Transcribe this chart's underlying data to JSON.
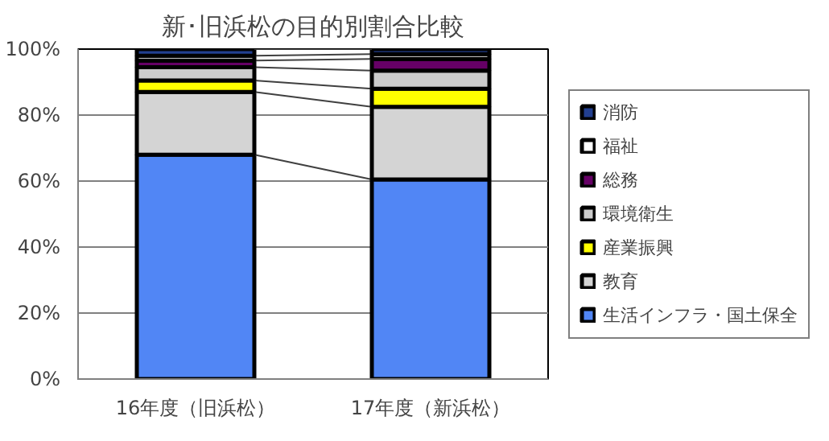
{
  "chart_data": {
    "type": "bar",
    "stacked": true,
    "title": "新･旧浜松の目的別割合比較",
    "categories": [
      "16年度（旧浜松）",
      "17年度（新浜松）"
    ],
    "series": [
      {
        "name": "生活インフラ・国土保全",
        "color": "#5186f5",
        "values": [
          68,
          60.5
        ]
      },
      {
        "name": "教育",
        "color": "#d4d4d4",
        "values": [
          19,
          22
        ]
      },
      {
        "name": "産業振興",
        "color": "#ffff00",
        "values": [
          3.5,
          5.5
        ]
      },
      {
        "name": "環境衛生",
        "color": "#cccccc",
        "values": [
          4,
          5.5
        ]
      },
      {
        "name": "総務",
        "color": "#660066",
        "values": [
          2,
          3.5
        ]
      },
      {
        "name": "福祉",
        "color": "#ffffff",
        "values": [
          1.5,
          1.5
        ]
      },
      {
        "name": "消防",
        "color": "#223f8f",
        "values": [
          2,
          1.5
        ]
      }
    ],
    "ylim": [
      0,
      100
    ],
    "yticks": [
      {
        "value": 0,
        "label": "0%"
      },
      {
        "value": 20,
        "label": "20%"
      },
      {
        "value": 40,
        "label": "40%"
      },
      {
        "value": 60,
        "label": "60%"
      },
      {
        "value": 80,
        "label": "80%"
      },
      {
        "value": 100,
        "label": "100%"
      }
    ],
    "grid": "y",
    "legend": "right"
  }
}
